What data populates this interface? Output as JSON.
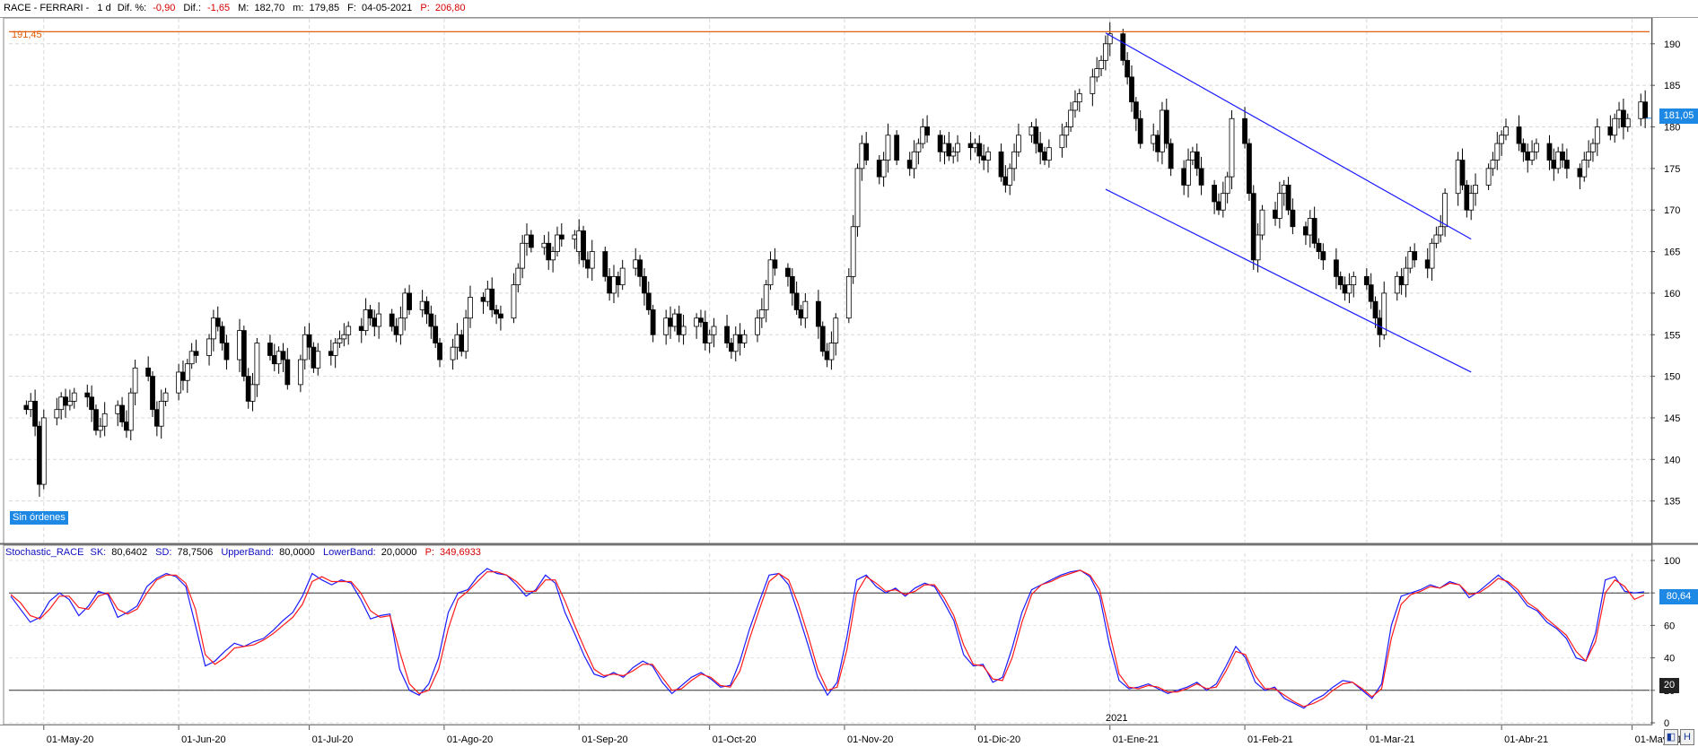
{
  "header": {
    "symbol": "RACE - FERRARI -",
    "period": "1 d",
    "dif_pct_label": "Dif. %:",
    "dif_pct_value": "-0,90",
    "dif_label": "Dif.:",
    "dif_value": "-1,65",
    "max_label": "M:",
    "max_value": "182,70",
    "min_label": "m:",
    "min_value": "179,85",
    "date_label": "F:",
    "date_value": "04-05-2021",
    "p_label": "P:",
    "p_value": "206,80"
  },
  "stochastic_header": {
    "name": "Stochastic_RACE",
    "sk_label": "SK:",
    "sk_value": "80,6402",
    "sd_label": "SD:",
    "sd_value": "78,7506",
    "upper_label": "UpperBand:",
    "upper_value": "80,0000",
    "lower_label": "LowerBand:",
    "lower_value": "20,0000",
    "p_label": "P:",
    "p_value": "349,6933"
  },
  "annotations": {
    "resistance_label": "191,45",
    "orders_badge": "Sin órdenes",
    "last_price_badge": "181,05",
    "stoch_last_badge": "80,64",
    "lower_band_badge": "20",
    "year_label": "2021",
    "corner_button_1": "◧",
    "corner_button_2": "H"
  },
  "colors": {
    "resistance_line": "#e06010",
    "channel_lines": "#1a1aff",
    "sk_line": "#1a1aff",
    "sd_line": "#ff1a1a",
    "badge_blue": "#1e88e5",
    "candle_up_fill": "#ffffff",
    "candle_down_fill": "#000000"
  },
  "chart_data": [
    {
      "type": "candlestick",
      "title": "",
      "ylim": [
        130,
        193
      ],
      "y_ticks": [
        135,
        140,
        145,
        150,
        155,
        160,
        165,
        170,
        175,
        180,
        185,
        190
      ],
      "x_tick_labels": [
        "01-May-20",
        "01-Jun-20",
        "01-Jul-20",
        "01-Ago-20",
        "01-Sep-20",
        "01-Oct-20",
        "01-Nov-20",
        "01-Dic-20",
        "01-Ene-21",
        "01-Feb-21",
        "01-Mar-21",
        "01-Abr-21",
        "01-May-21"
      ],
      "grid": true,
      "horizontal_line": 191.45,
      "channel": {
        "upper": [
          [
            "2020-12-31",
            191.3
          ],
          [
            "2021-03-25",
            166.5
          ]
        ],
        "lower": [
          [
            "2020-12-31",
            172.5
          ],
          [
            "2021-03-25",
            150.5
          ]
        ]
      },
      "series": [
        {
          "x": "2020-04-27",
          "closes": [
            146,
            147,
            144,
            137,
            145,
            146,
            147.5,
            146.5,
            147,
            148,
            147.5,
            146,
            143.5,
            144
          ]
        },
        {
          "x": "2020-05-15",
          "closes": [
            145.5,
            146.5,
            144.5,
            143.5,
            148,
            151,
            150,
            146,
            144,
            147,
            148,
            150.5,
            149.5,
            151.5,
            153,
            152.5,
            154.5,
            157,
            156,
            154,
            152,
            155.5,
            150,
            147,
            149,
            154,
            152.5
          ]
        },
        {
          "x": "2020-06-23",
          "closes": [
            151.5,
            153,
            152,
            149,
            152,
            155,
            153.5,
            151,
            153,
            152.5,
            154,
            154.5,
            155,
            156,
            155.5,
            158,
            157,
            156,
            157.5,
            156,
            155,
            157,
            160,
            158,
            159,
            157.5,
            156,
            154,
            152,
            153.5,
            155,
            153,
            157,
            159.5,
            159,
            160.5,
            158,
            157.5,
            157,
            161,
            163,
            166,
            167,
            165.5,
            166,
            164,
            165,
            167,
            166.5,
            167,
            165
          ]
        },
        {
          "x": "2020-09-01",
          "closes": [
            167.5,
            164,
            163,
            165,
            162,
            160,
            162,
            161,
            163,
            164,
            162,
            160,
            158,
            155,
            157,
            156,
            157.5,
            155,
            156,
            157,
            156.5,
            154,
            155,
            156,
            154,
            153,
            155,
            154,
            155,
            157,
            158,
            161,
            164,
            163,
            162,
            160,
            158,
            157,
            159,
            156,
            153,
            152,
            154,
            157,
            162,
            168,
            175,
            178,
            176,
            174,
            176,
            179
          ]
        },
        {
          "x": "2020-11-13",
          "closes": [
            176,
            175,
            177,
            178,
            180,
            179,
            177,
            178,
            176.5,
            177,
            178,
            177.5,
            178,
            176.5,
            176,
            177,
            174,
            173,
            175,
            177,
            179,
            180,
            178,
            177,
            176,
            177.5,
            179,
            180,
            182,
            183,
            184,
            186,
            187,
            188,
            190,
            191.2,
            188,
            186,
            183,
            181
          ]
        },
        {
          "x": "2021-01-08",
          "closes": [
            178,
            179,
            177,
            182,
            178,
            175,
            173,
            176,
            177,
            175,
            173,
            171,
            170,
            172,
            174,
            181,
            178,
            172,
            164,
            167,
            170,
            169,
            172,
            173,
            170,
            168,
            167,
            169,
            166,
            165,
            164,
            162,
            161,
            160,
            161,
            162,
            161,
            159,
            157,
            155,
            160,
            162,
            161,
            163,
            165,
            164,
            163,
            166,
            167,
            168,
            172,
            176,
            173,
            170
          ]
        },
        {
          "x": "2021-03-25",
          "closes": [
            172,
            173,
            175,
            176,
            178,
            179,
            180,
            178,
            177,
            176,
            177,
            178,
            176,
            175,
            177,
            176,
            175,
            174,
            176,
            177,
            178,
            180,
            179,
            181,
            182,
            180,
            181,
            183,
            181.05
          ]
        }
      ],
      "last_price": 181.05
    },
    {
      "type": "line",
      "title": "",
      "ylim": [
        0,
        100
      ],
      "y_ticks": [
        0,
        20,
        40,
        60,
        80,
        100
      ],
      "bands": [
        80,
        20
      ],
      "series": [
        {
          "name": "SK",
          "values": [
            78,
            70,
            62,
            65,
            75,
            80,
            76,
            66,
            72,
            81,
            79,
            65,
            68,
            72,
            84,
            89,
            92,
            90,
            84,
            60,
            35,
            38,
            44,
            49,
            47,
            50,
            52,
            57,
            63,
            68,
            78,
            92,
            88,
            85,
            88,
            86,
            76,
            64,
            66,
            67,
            33,
            20,
            17,
            24,
            40,
            68,
            80,
            82,
            90,
            95,
            92,
            91,
            85,
            78,
            82,
            91,
            86,
            68,
            55,
            41,
            30,
            28,
            31,
            28,
            34,
            38,
            35,
            25,
            18,
            23,
            28,
            31,
            27,
            22,
            23,
            38,
            58,
            75,
            91,
            92,
            85,
            67,
            48,
            28,
            17,
            25,
            53,
            88,
            91,
            84,
            80,
            83,
            78,
            83,
            86,
            84,
            74,
            63,
            42,
            35,
            36,
            25,
            28,
            46,
            68,
            82,
            85,
            88,
            91,
            93,
            94,
            90,
            78,
            48,
            26,
            21,
            22,
            24,
            21,
            18,
            20,
            22,
            25,
            20,
            24,
            35,
            47,
            40,
            25,
            20,
            22,
            15,
            12,
            9,
            14,
            17,
            22,
            26,
            25,
            20,
            15,
            24,
            60,
            78,
            80,
            82,
            85,
            83,
            87,
            85,
            77,
            81,
            86,
            91,
            86,
            80,
            72,
            69,
            62,
            58,
            52,
            40,
            38,
            55,
            88,
            90,
            81,
            80,
            80.64
          ]
        },
        {
          "name": "SD",
          "values": [
            79,
            74,
            66,
            64,
            70,
            78,
            78,
            71,
            70,
            78,
            80,
            70,
            67,
            70,
            80,
            88,
            91,
            91,
            86,
            70,
            42,
            36,
            40,
            46,
            47,
            48,
            51,
            55,
            60,
            65,
            73,
            87,
            90,
            87,
            87,
            87,
            80,
            69,
            65,
            66,
            44,
            24,
            18,
            20,
            33,
            58,
            76,
            81,
            87,
            93,
            93,
            91,
            87,
            81,
            81,
            88,
            88,
            75,
            60,
            46,
            33,
            29,
            30,
            29,
            32,
            36,
            36,
            28,
            20,
            21,
            26,
            30,
            28,
            23,
            22,
            32,
            52,
            70,
            87,
            92,
            88,
            73,
            54,
            33,
            20,
            22,
            45,
            80,
            90,
            86,
            81,
            82,
            79,
            81,
            85,
            85,
            77,
            66,
            48,
            36,
            35,
            27,
            26,
            40,
            62,
            79,
            85,
            87,
            90,
            92,
            94,
            91,
            82,
            56,
            30,
            22,
            21,
            23,
            22,
            19,
            19,
            21,
            24,
            21,
            22,
            32,
            44,
            42,
            29,
            21,
            21,
            17,
            13,
            10,
            12,
            15,
            20,
            24,
            25,
            21,
            16,
            21,
            52,
            73,
            79,
            81,
            84,
            83,
            86,
            85,
            79,
            80,
            84,
            89,
            87,
            82,
            74,
            70,
            64,
            59,
            54,
            44,
            38,
            50,
            80,
            88,
            84,
            76,
            78.75
          ]
        }
      ]
    }
  ]
}
